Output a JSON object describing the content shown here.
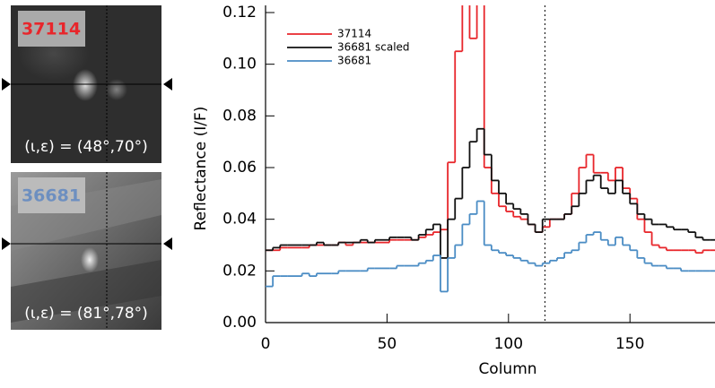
{
  "chart_data": {
    "type": "step",
    "xlabel": "Column",
    "ylabel": "Reflectance  (I/F)",
    "x": [
      0,
      3,
      6,
      9,
      12,
      15,
      18,
      21,
      24,
      27,
      30,
      33,
      36,
      39,
      42,
      45,
      48,
      51,
      54,
      57,
      60,
      63,
      66,
      69,
      72,
      75,
      78,
      81,
      84,
      87,
      90,
      93,
      96,
      99,
      102,
      105,
      108,
      111,
      114,
      117,
      120,
      123,
      126,
      129,
      132,
      135,
      138,
      141,
      144,
      147,
      150,
      153,
      156,
      159,
      162,
      165,
      168,
      171,
      174,
      177,
      180,
      183
    ],
    "series": [
      {
        "name": "37114",
        "color": "#e8262b",
        "values": [
          0.028,
          0.028,
          0.029,
          0.029,
          0.029,
          0.029,
          0.03,
          0.03,
          0.03,
          0.03,
          0.031,
          0.03,
          0.031,
          0.031,
          0.031,
          0.031,
          0.031,
          0.032,
          0.032,
          0.032,
          0.032,
          0.033,
          0.034,
          0.035,
          0.036,
          0.062,
          0.105,
          0.125,
          0.11,
          0.125,
          0.06,
          0.05,
          0.045,
          0.043,
          0.041,
          0.04,
          0.038,
          0.035,
          0.037,
          0.04,
          0.04,
          0.042,
          0.05,
          0.06,
          0.065,
          0.058,
          0.058,
          0.055,
          0.06,
          0.052,
          0.048,
          0.04,
          0.035,
          0.03,
          0.029,
          0.028,
          0.028,
          0.028,
          0.028,
          0.027,
          0.028,
          0.028
        ]
      },
      {
        "name": "36681  scaled",
        "color": "#111111",
        "values": [
          0.028,
          0.029,
          0.03,
          0.03,
          0.03,
          0.03,
          0.03,
          0.031,
          0.03,
          0.03,
          0.031,
          0.031,
          0.031,
          0.032,
          0.031,
          0.032,
          0.032,
          0.033,
          0.033,
          0.033,
          0.032,
          0.034,
          0.036,
          0.038,
          0.025,
          0.04,
          0.048,
          0.06,
          0.07,
          0.075,
          0.065,
          0.055,
          0.05,
          0.046,
          0.044,
          0.042,
          0.038,
          0.035,
          0.04,
          0.04,
          0.04,
          0.042,
          0.045,
          0.05,
          0.055,
          0.057,
          0.052,
          0.05,
          0.055,
          0.05,
          0.046,
          0.042,
          0.04,
          0.038,
          0.038,
          0.037,
          0.036,
          0.036,
          0.035,
          0.033,
          0.032,
          0.032
        ]
      },
      {
        "name": "36681",
        "color": "#4a8cc4",
        "values": [
          0.014,
          0.018,
          0.018,
          0.018,
          0.018,
          0.019,
          0.018,
          0.019,
          0.019,
          0.019,
          0.02,
          0.02,
          0.02,
          0.02,
          0.021,
          0.021,
          0.021,
          0.021,
          0.022,
          0.022,
          0.022,
          0.023,
          0.024,
          0.026,
          0.012,
          0.025,
          0.03,
          0.038,
          0.042,
          0.047,
          0.03,
          0.028,
          0.027,
          0.026,
          0.025,
          0.024,
          0.023,
          0.022,
          0.023,
          0.024,
          0.025,
          0.027,
          0.028,
          0.031,
          0.034,
          0.035,
          0.032,
          0.03,
          0.033,
          0.03,
          0.028,
          0.025,
          0.023,
          0.022,
          0.022,
          0.021,
          0.021,
          0.02,
          0.02,
          0.02,
          0.02,
          0.02
        ]
      }
    ],
    "xlim": [
      0,
      185
    ],
    "ylim": [
      0,
      0.12
    ],
    "xticks": [
      0,
      50,
      100,
      150
    ],
    "yticks": [
      {
        "value": 0,
        "label": "0.00"
      },
      {
        "value": 0.02,
        "label": "0.02"
      },
      {
        "value": 0.04,
        "label": "0.04"
      },
      {
        "value": 0.06,
        "label": "0.06"
      },
      {
        "value": 0.08,
        "label": "0.08"
      },
      {
        "value": 0.1,
        "label": "0.10"
      },
      {
        "value": 0.12,
        "label": "0.12"
      }
    ],
    "vline": 115,
    "legend": "upper left",
    "grid": false
  },
  "image_panels": [
    {
      "label": "37114",
      "label_color": "#e8262b",
      "angles": "(ι,ε) = (48°,70°)"
    },
    {
      "label": "36681",
      "label_color": "#6d8fc0",
      "angles": "(ι,ε) = (81°,78°)"
    }
  ]
}
